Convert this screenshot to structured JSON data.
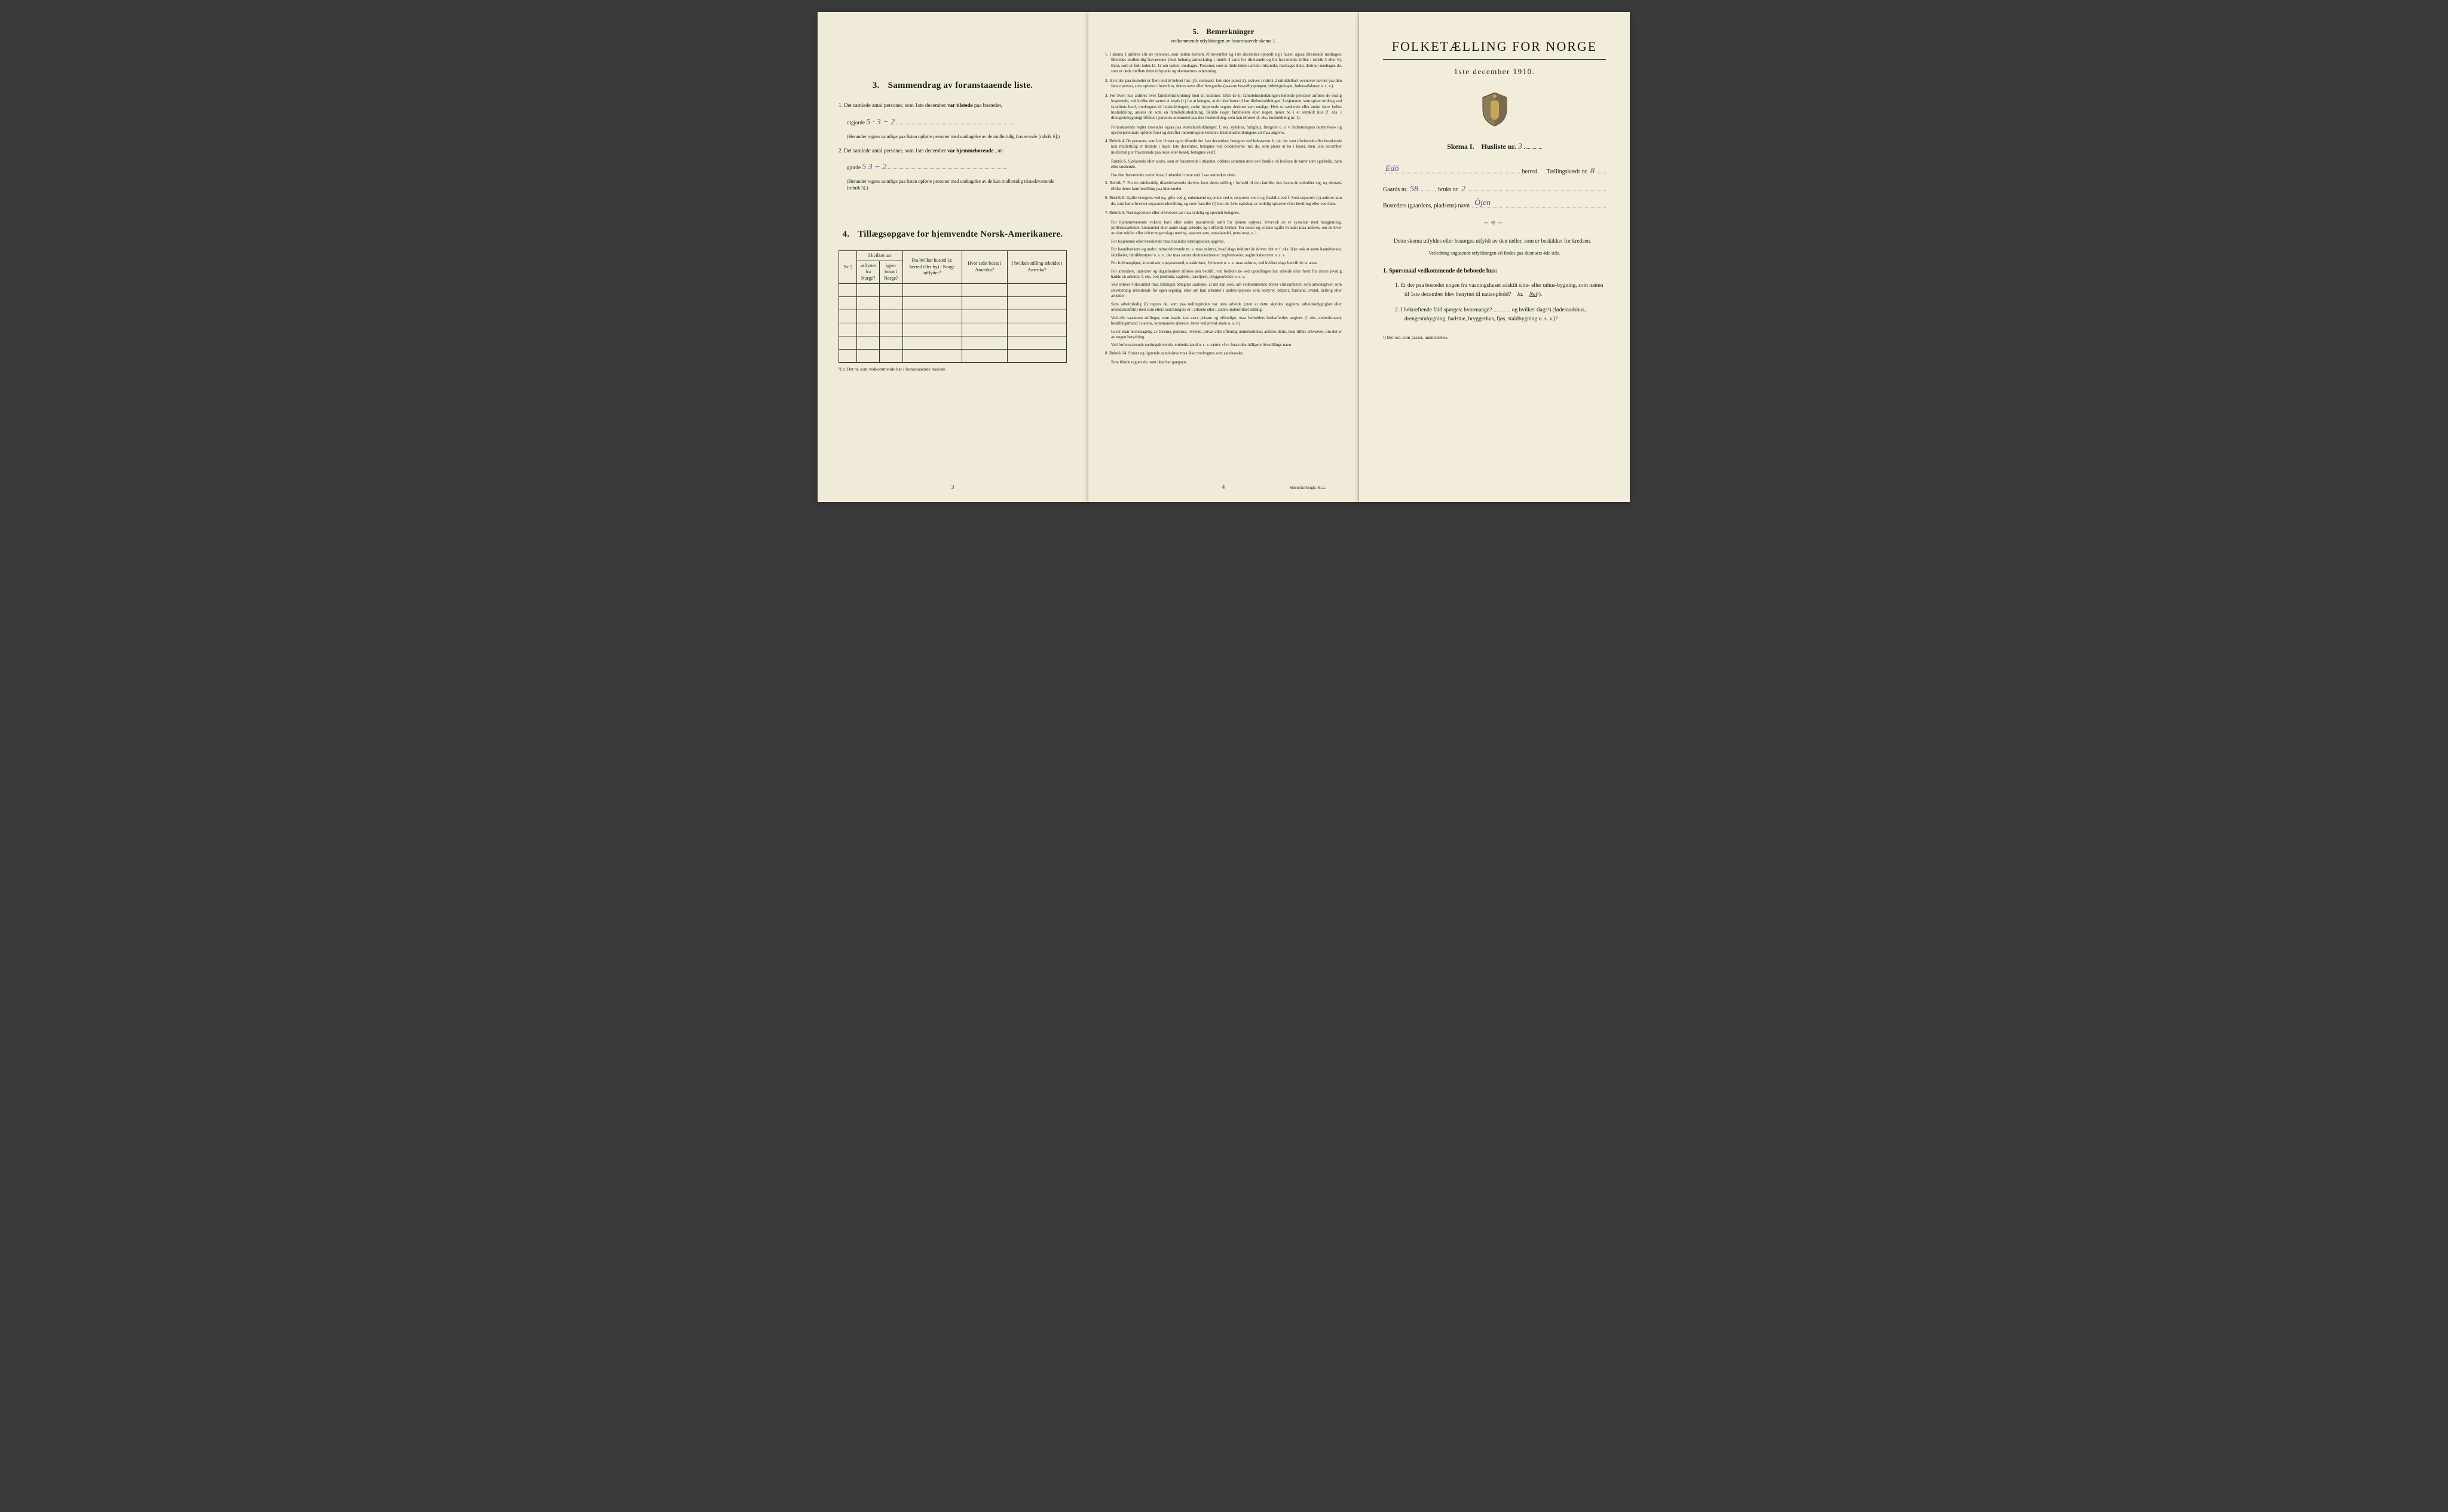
{
  "page1": {
    "section3": {
      "num": "3.",
      "title": "Sammendrag av foranstaaende liste.",
      "item1_prefix": "1. Det samlede antal personer, som 1ste december",
      "item1_bold": "var tilstede",
      "item1_suffix": "paa bostedet,",
      "item1_line2_prefix": "utgjorde",
      "item1_hw": "5 · 3 − 2",
      "item1_note": "(Herunder regnes samtlige paa listen opførte personer med undtagelse av de midlertidig fraværende [rubrik 6].)",
      "item2_prefix": "2. Det samlede antal personer, som 1ste december",
      "item2_bold": "var hjemmehørende",
      "item2_suffix": ", ut-",
      "item2_line2_prefix": "gjorde",
      "item2_hw": "5   3 − 2",
      "item2_note": "(Herunder regnes samtlige paa listen opførte personer med undtagelse av de kun midlertidig tilstedeværende [rubrik 5].)"
    },
    "section4": {
      "num": "4.",
      "title": "Tillægsopgave for hjemvendte Norsk-Amerikanere.",
      "headers": {
        "nr": "Nr.¹)",
        "aar_group": "I hvilket aar",
        "utflyttet": "utflyttet fra Norge?",
        "igjen": "igjen bosat i Norge?",
        "bosted": "Fra hvilket bosted (ɔ: herred eller by) i Norge utflyttet?",
        "sidst": "Hvor sidst bosat i Amerika?",
        "stilling": "I hvilken stilling arbeidet i Amerika?"
      },
      "footnote": "¹) ɔ: Det nr. som vedkommende har i foranstaaende husliste."
    },
    "pagenum": "3"
  },
  "page2": {
    "title_num": "5.",
    "title": "Bemerkninger",
    "subtitle": "vedkommende utfyldningen av foranstaaende skema 1.",
    "items": [
      "1. I skema 1 anføres alle de personer, som natten mellem 30 november og 1ste december opholdt sig i huset; ogsaa tilreisende medtages; likeledes midlertidig fraværende (med behørig anmerkning i rubrik 4 samt for tilreisende og for fraværende tillike i rubrik 5 eller 6). Barn, som er født inden kl. 12 om natten, medtages. Personer, som er døde inden nævnte tidspunkt, medtages ikke; derimot medtages de, som er døde mellem dette tidspunkt og skemaernes avhentning.",
      "2. Hvis der paa bostedet er flere end ét beboet hus (jfr. skemaets 1ste side punkt 2), skrives i rubrik 2 umiddelbart ovenover navnet paa den første person, som opføres i hvert hus, dettes navn eller betegnelse (saasom hovedbygningen, sidebygningen, føderaadshuset o. s. v.).",
      "3. For hvert hus anføres hver familiehusholdning med sit nummer. Efter de til familiehusholdningen hørende personer anføres de enslig losjerende, ved hvilke der sættes et kryds (×) for at betegne, at de ikke hører til familiehusholdningen. Losjerende, som spiser middag ved familiens bord, medregnes til husholdningen; andre losjerende regnes derimot som enslige. Hvis to søskende eller andre fører fælles husholdning, ansees de som en familiehusholdning. Skulde noget familielem eller nogen tjener bo i et særskilt hus (f. eks. i drengestubygning) tilføies i parentes nummeret paa den husholdning, som han tilhører (f. eks. husholdning nr. 1).",
      "Foranstaaende regler anvendes ogsaa paa ekstrahusholdninger, f. eks. sykehus, fattighus, fængsler o. s. v. Indretningens bestyrelses- og opsynspersonale opføres først og derefter indretningens lemmer. Ekstrahusholdningens art maa angives.",
      "4. Rubrik 4. De personer, som bor i huset og er tilstede der 1ste december, betegnes ved bokstaven: b; de, der som tilreisende eller besøkende kun midlertidig er tilstede i huset 1ste december, betegnes ved bokstaverne: mt; de, som pleier at bo i huset, men 1ste december midlertidig er fraværende paa reise eller besøk, betegnes ved f.",
      "Rubrik 6. Sjøfarende eller andre, som er fraværende i utlandet, opføres sammen med den familie, til hvilken de hører som egtefælle, barn eller søskende.",
      "Har den fraværende været bosat i utlandet i mere end 1 aar anmerkes dette.",
      "5. Rubrik 7. For de midlertidig tilstedeværende skrives først deres stilling i forhold til den familie, hos hvem de opholder sig, og dernæst tillike deres familiestilling paa hjemstedet.",
      "6. Rubrik 8. Ugifte betegnes ved ug, gifte ved g, enkemænd og enker ved e, separerte ved s og fraskilte ved f. Som separerte (s) anføres kun de, som har erhvervet separationsbevilling, og som fraskilte (f) kun de, hvis egteskap er endelig ophævet efter bevilling eller ved dom.",
      "7. Rubrik 9. Næringsveiens eller erhvervets art maa tydelig og specielt betegnes.",
      "For hjemmeværende voksne barn eller andre paarørende samt for tjenere oplyses, hvorvidt de er sysselsat med haugjerning, jordbruksarbeide, kreaturstel eller andet slags arbeide, og i tilfælde hvilket. For enker og voksne ugifte kvinder maa anføres, om de lever av sine midler eller driver nogenslags næring, saasom søm, smaahandel, pensionat, o. l.",
      "For losjerende eller besøkende maa likeledes næringsveien opgives.",
      "For haandverkere og andre industridrivende m. v. maa anføres, hvad slags industri de driver; det er f. eks. ikke nok at sætte haandverker, fabrikeier, fabrikbestyrer o. s. v.; der maa sættes skomakermester, teglverkseier, sagbruksbestyrer o. s. v.",
      "For fuldmægtiger, kontorister, opsynsmænd, maskinister, fyrbøtere o. s. v. maa anføres, ved hvilket slags bedrift de er ansat.",
      "For arbeidere, inderster og dagarbeidere tilføies den bedrift, ved hvilken de ved optællingen har arbeide eller forut for denne jevnlig hadde sit arbeide, f. eks. ved jordbruk, sagbruk, træsliperi, bryggearbeide o. s. v.",
      "Ved enhver virksomhet maa stillingen betegnes saaledes, at det kan sees, om vedkommende driver virksomheten som arbeidsgiver, som selvstændig arbeidende for egen regning, eller om han arbeider i andres tjeneste som bestyrer, betjent, formand, svend, lærling eller arbeider.",
      "Som arbeidsledig (l) regnes de, som paa tællingstiden var uten arbeide (uten at dette skyldes sygdom, arbeidsudygtighet eller arbeidskonflikt) men som ellers sedvanligvis er i arbeide eller i anden underordnet stilling.",
      "Ved alle saadanne stillinger, som baade kan være private og offentlige, maa forholdets beskaffenhet angives (f. eks. embedsmand, bestillingsmand i statens, kommunens tjeneste, lærer ved privat skole o. s. v.).",
      "Lever man hovedsagelig av formue, pension, livrente, privat eller offentlig understøttelse, anføres dette, men tillike erhvervet, om det er av nogen betydning.",
      "Ved forhenværende næringsdrivende, embedsmænd o. s. v. sættes «fv» foran den tidligere livsstillings navn.",
      "8. Rubrik 14. Sinker og lignende aandssløve maa ikke medregnes som aandssvake.",
      "Som blinde regnes de, som ikke har gangsyn."
    ],
    "pagenum": "4",
    "printer": "Steen'ske Bogtr. Kr.a."
  },
  "page3": {
    "title": "FOLKETÆLLING FOR NORGE",
    "subtitle": "1ste december 1910.",
    "skema_label": "Skema I.",
    "husliste_label": "Husliste nr.",
    "husliste_nr": "3",
    "herred_hw": "Edö",
    "herred_label": "herred.",
    "krets_label": "Tællingskreds nr.",
    "krets_nr": "8",
    "gaards_label": "Gaards nr.",
    "gaards_nr": "58",
    "bruks_label": ", bruks nr.",
    "bruks_nr": "2",
    "bosted_label": "Bostedets (gaardens, pladsens) navn",
    "bosted_hw": "Öjen",
    "instruction": "Dette skema utfyldes eller besørges utfyldt av den tæller, som er beskikket for kredsen.",
    "instruction_sub": "Veiledning angaaende utfyldningen vil findes paa skemaets 4de side.",
    "q_heading_num": "1.",
    "q_heading": "Spørsmaal vedkommende de beboede hus:",
    "q1": "1. Er der paa bostedet nogen fra vaaningshuset adskilt side- eller uthus-bygning, som natten til 1ste december blev benyttet til natteophold?",
    "q1_ja": "Ja.",
    "q1_nei": "Nei",
    "q1_sup": "¹).",
    "q2": "2. I bekræftende fald spørges: hvormange? ............ og hvilket slags¹) (føderaadshus, drengestubygning, badstue, bryggerhus, fjøs, staldbygning o. s. v.)?",
    "footnote": "¹) Det ord, som passer, understrekes."
  },
  "colors": {
    "paper": "#f0ebd8",
    "paper3": "#f2eddb",
    "ink": "#1a1a1a",
    "handwriting": "#5a4a8a",
    "bg": "#3a3a3a",
    "border": "#c8c0a8"
  }
}
